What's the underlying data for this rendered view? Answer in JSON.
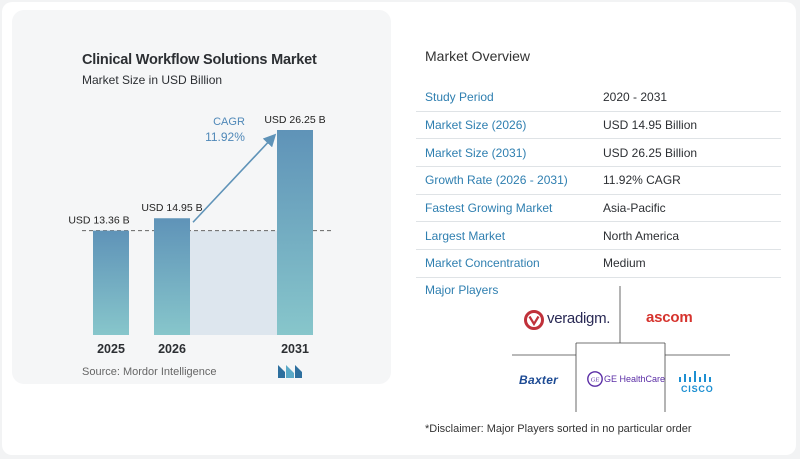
{
  "chart_data": {
    "type": "bar",
    "title": "Clinical Workflow Solutions Market",
    "subtitle": "Market Size in USD Billion",
    "categories": [
      "2025",
      "2026",
      "2031"
    ],
    "values": [
      13.36,
      14.95,
      26.25
    ],
    "value_labels": [
      "USD 13.36 B",
      "USD 14.95 B",
      "USD 26.25 B"
    ],
    "annotation": {
      "label": "CAGR",
      "value": "11.92%"
    },
    "colors": {
      "bar_top": "#5f93b8",
      "bar_bottom": "#87c6cb",
      "shade": "#dde6ee",
      "arrow": "#5f93b8"
    }
  },
  "source": "Source:  Mordor Intelligence",
  "overview": {
    "title": "Market Overview",
    "rows": [
      {
        "key": "Study Period",
        "value": "2020 - 2031"
      },
      {
        "key": "Market Size (2026)",
        "value": "USD 14.95 Billion"
      },
      {
        "key": "Market Size (2031)",
        "value": "USD 26.25 Billion"
      },
      {
        "key": "Growth Rate (2026 - 2031)",
        "value": "11.92% CAGR"
      },
      {
        "key": "Fastest Growing Market",
        "value": "Asia-Pacific"
      },
      {
        "key": "Largest Market",
        "value": "North America"
      },
      {
        "key": "Market Concentration",
        "value": "Medium"
      }
    ]
  },
  "players": {
    "label": "Major Players",
    "logos": {
      "veradigm": "veradigm.",
      "ascom": "ascom",
      "baxter": "Baxter",
      "ge": "GE HealthCare",
      "ge_mark": "GE",
      "cisco": "CISCO"
    }
  },
  "disclaimer": "*Disclaimer: Major Players sorted in no particular order"
}
